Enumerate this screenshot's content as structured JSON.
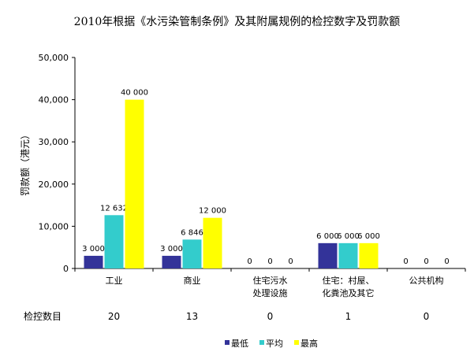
{
  "chart_data": {
    "type": "bar",
    "title": "2010年根据《水污染管制条例》及其附属规例的检控数字及罚款额",
    "ylabel": "罚款额（港元）",
    "xlabel": "",
    "ylim": [
      0,
      50000
    ],
    "yticks": [
      "0",
      "10,000",
      "20,000",
      "30,000",
      "40,000",
      "50,000"
    ],
    "grid": false,
    "legend": "bottom",
    "categories": [
      [
        "工业"
      ],
      [
        "商业"
      ],
      [
        "住宅污水",
        "处理设施"
      ],
      [
        "住宅：村屋、",
        "化粪池及其它"
      ],
      [
        "公共机构"
      ]
    ],
    "series": [
      {
        "name": "最低",
        "color": "#333399",
        "values": [
          3000,
          3000,
          0,
          6000,
          0
        ],
        "labels": [
          "3 000",
          "3 000",
          "0",
          "6 000",
          "0"
        ]
      },
      {
        "name": "平均",
        "color": "#33CCCC",
        "values": [
          12632,
          6846,
          0,
          6000,
          0
        ],
        "labels": [
          "12 632",
          "6 846",
          "0",
          "6 000",
          "0"
        ]
      },
      {
        "name": "最高",
        "color": "#FFFF00",
        "values": [
          40000,
          12000,
          0,
          6000,
          0
        ],
        "labels": [
          "40 000",
          "12 000",
          "0",
          "6 000",
          "0"
        ]
      }
    ],
    "table": {
      "label": "检控数目",
      "values": [
        "20",
        "13",
        "0",
        "1",
        "0"
      ]
    }
  }
}
